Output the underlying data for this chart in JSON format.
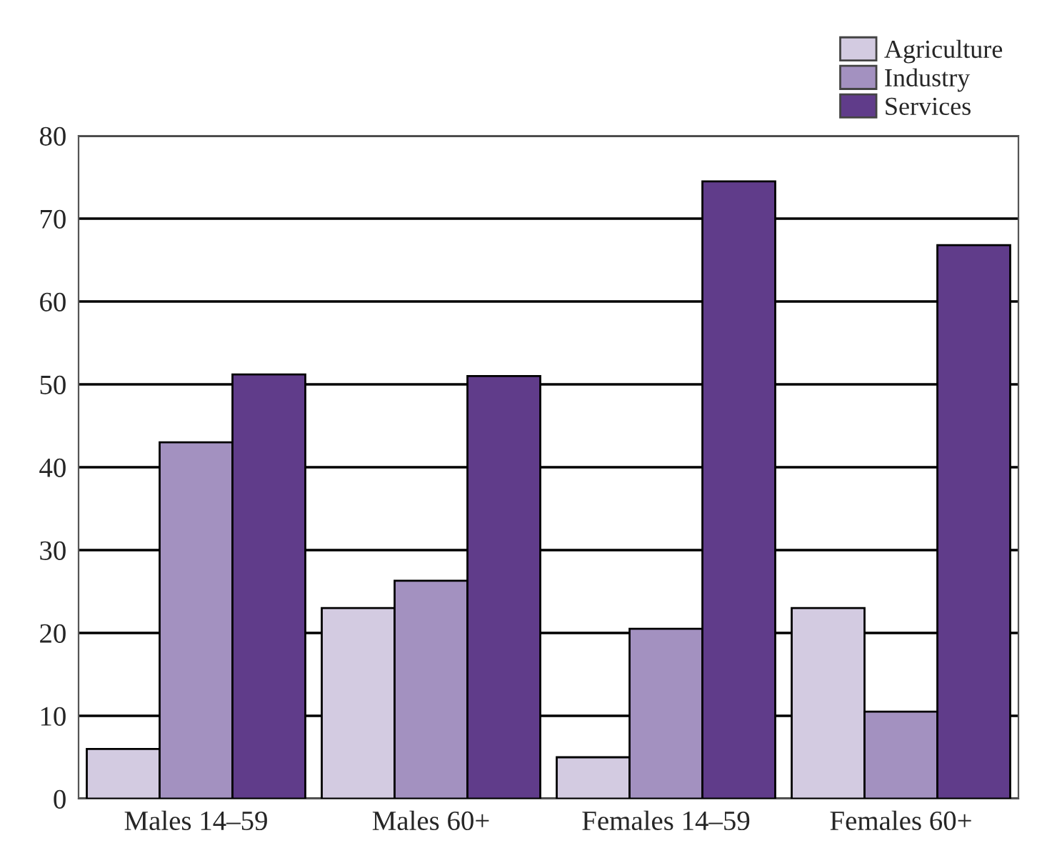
{
  "chart_data": {
    "type": "bar",
    "categories": [
      "Males 14–59",
      "Males 60+",
      "Females 14–59",
      "Females 60+"
    ],
    "series": [
      {
        "name": "Agriculture",
        "color": "#d3cbe1",
        "values": [
          6,
          23,
          5,
          23
        ]
      },
      {
        "name": "Industry",
        "color": "#a391c0",
        "values": [
          43,
          26.3,
          20.5,
          10.5
        ]
      },
      {
        "name": "Services",
        "color": "#603c8a",
        "values": [
          51.2,
          51,
          74.5,
          66.8
        ]
      }
    ],
    "ylim": [
      0,
      80
    ],
    "yticks": [
      0,
      10,
      20,
      30,
      40,
      50,
      60,
      70,
      80
    ],
    "grid": "y",
    "legend": "top right"
  }
}
